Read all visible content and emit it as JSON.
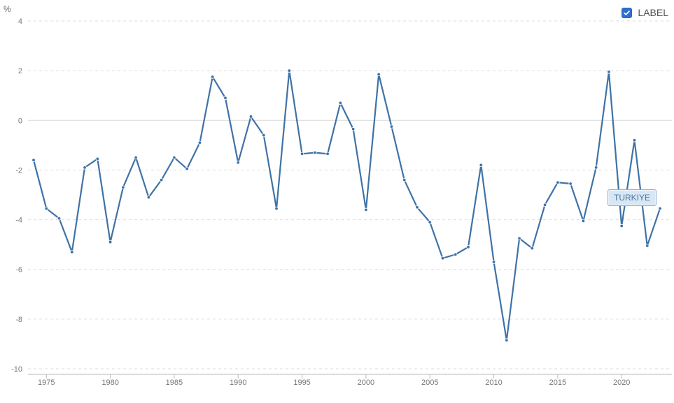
{
  "legend": {
    "label": "LABEL",
    "checked": true
  },
  "tooltip": {
    "label": "TURKIYE"
  },
  "chart_data": {
    "type": "line",
    "title": "",
    "xlabel": "",
    "ylabel": "%",
    "xlim": [
      1974,
      2023
    ],
    "ylim": [
      -10,
      4
    ],
    "y_ticks": [
      4,
      2,
      0,
      -2,
      -4,
      -6,
      -8,
      -10
    ],
    "x_ticks": [
      1975,
      1980,
      1985,
      1990,
      1995,
      2000,
      2005,
      2010,
      2015,
      2020
    ],
    "grid": true,
    "legend_placement": "top-right",
    "series": [
      {
        "color": "#3f72a6",
        "points": [
          {
            "x": 1974,
            "y": -1.6
          },
          {
            "x": 1975,
            "y": -3.55
          },
          {
            "x": 1976,
            "y": -3.95
          },
          {
            "x": 1977,
            "y": -5.3
          },
          {
            "x": 1978,
            "y": -1.9
          },
          {
            "x": 1979,
            "y": -1.55
          },
          {
            "x": 1980,
            "y": -4.9
          },
          {
            "x": 1981,
            "y": -2.7
          },
          {
            "x": 1982,
            "y": -1.5
          },
          {
            "x": 1983,
            "y": -3.1
          },
          {
            "x": 1984,
            "y": -2.4
          },
          {
            "x": 1985,
            "y": -1.5
          },
          {
            "x": 1986,
            "y": -1.95
          },
          {
            "x": 1987,
            "y": -0.9
          },
          {
            "x": 1988,
            "y": 1.75
          },
          {
            "x": 1989,
            "y": 0.9
          },
          {
            "x": 1990,
            "y": -1.7
          },
          {
            "x": 1991,
            "y": 0.15
          },
          {
            "x": 1992,
            "y": -0.6
          },
          {
            "x": 1993,
            "y": -3.55
          },
          {
            "x": 1994,
            "y": 2.0
          },
          {
            "x": 1995,
            "y": -1.35
          },
          {
            "x": 1996,
            "y": -1.3
          },
          {
            "x": 1997,
            "y": -1.35
          },
          {
            "x": 1998,
            "y": 0.7
          },
          {
            "x": 1999,
            "y": -0.35
          },
          {
            "x": 2000,
            "y": -3.6
          },
          {
            "x": 2001,
            "y": 1.85
          },
          {
            "x": 2002,
            "y": -0.25
          },
          {
            "x": 2003,
            "y": -2.4
          },
          {
            "x": 2004,
            "y": -3.5
          },
          {
            "x": 2005,
            "y": -4.1
          },
          {
            "x": 2006,
            "y": -5.55
          },
          {
            "x": 2007,
            "y": -5.4
          },
          {
            "x": 2008,
            "y": -5.1
          },
          {
            "x": 2009,
            "y": -1.8
          },
          {
            "x": 2010,
            "y": -5.7
          },
          {
            "x": 2011,
            "y": -8.85
          },
          {
            "x": 2012,
            "y": -4.75
          },
          {
            "x": 2013,
            "y": -5.15
          },
          {
            "x": 2014,
            "y": -3.4
          },
          {
            "x": 2015,
            "y": -2.5
          },
          {
            "x": 2016,
            "y": -2.55
          },
          {
            "x": 2017,
            "y": -4.05
          },
          {
            "x": 2018,
            "y": -1.9
          },
          {
            "x": 2019,
            "y": 1.95
          },
          {
            "x": 2020,
            "y": -4.25
          },
          {
            "x": 2021,
            "y": -0.8
          },
          {
            "x": 2022,
            "y": -5.05
          },
          {
            "x": 2023,
            "y": -3.55
          }
        ]
      }
    ]
  }
}
